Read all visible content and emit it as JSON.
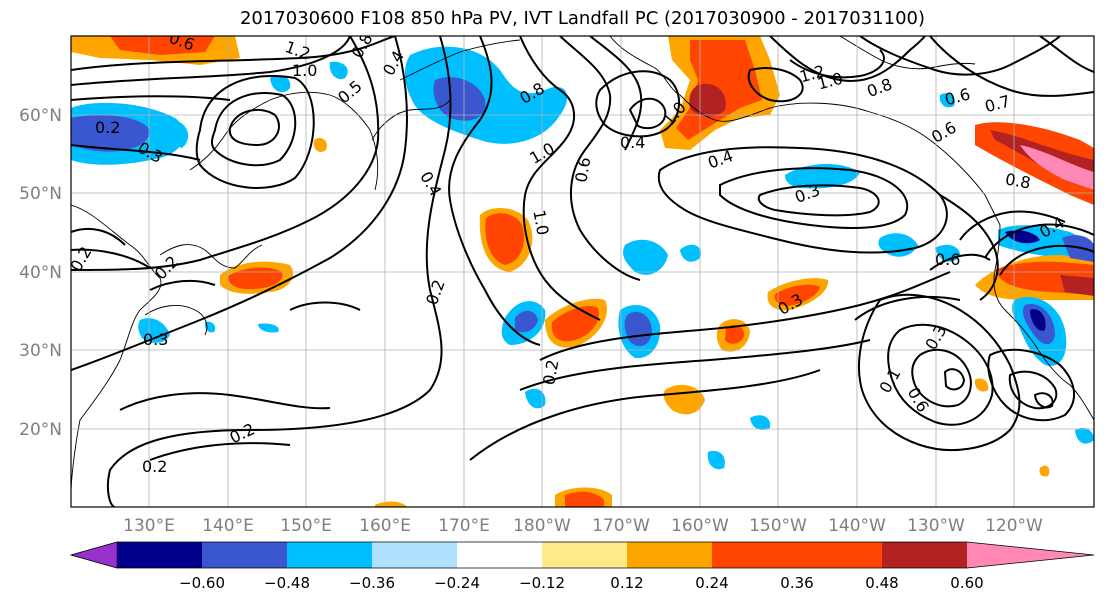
{
  "title": "2017030600 F108 850 hPa PV, IVT Landfall PC (2017030900 - 2017031100)",
  "map": {
    "lon_labels": [
      "130°E",
      "140°E",
      "150°E",
      "160°E",
      "170°E",
      "180°W",
      "170°W",
      "160°W",
      "150°W",
      "140°W",
      "130°W",
      "120°W"
    ],
    "lat_labels": [
      "60°N",
      "50°N",
      "40°N",
      "30°N",
      "20°N"
    ],
    "label_color": "#7f7f7f",
    "contour_labels": [
      "0.6",
      "1.2",
      "1.0",
      "0.8",
      "0.4",
      "0.5",
      "0.2",
      "0.3",
      "0.8",
      "1.0",
      "0.6",
      "1.0",
      "0.4",
      "0.4",
      "0.3",
      "1.2",
      "1.0",
      "0.8",
      "0.6",
      "0.7",
      "0.6",
      "0.8",
      "0.4",
      "1.0",
      "0.2",
      "0.2",
      "0.3",
      "0.2",
      "0.2",
      "0.2",
      "0.3",
      "0.3",
      "0.6",
      "0.1",
      "0.6",
      "0.4",
      "0.2"
    ]
  },
  "colorbar": {
    "ticks": [
      "−0.60",
      "−0.48",
      "−0.36",
      "−0.24",
      "−0.12",
      "0.12",
      "0.24",
      "0.36",
      "0.48",
      "0.60"
    ],
    "colors": [
      "#9932cc",
      "#00008b",
      "#3a57cf",
      "#00bfff",
      "#b0e2ff",
      "#ffffff",
      "#ffea8a",
      "#ffa500",
      "#ff4500",
      "#b22222",
      "#ff88b5"
    ]
  }
}
